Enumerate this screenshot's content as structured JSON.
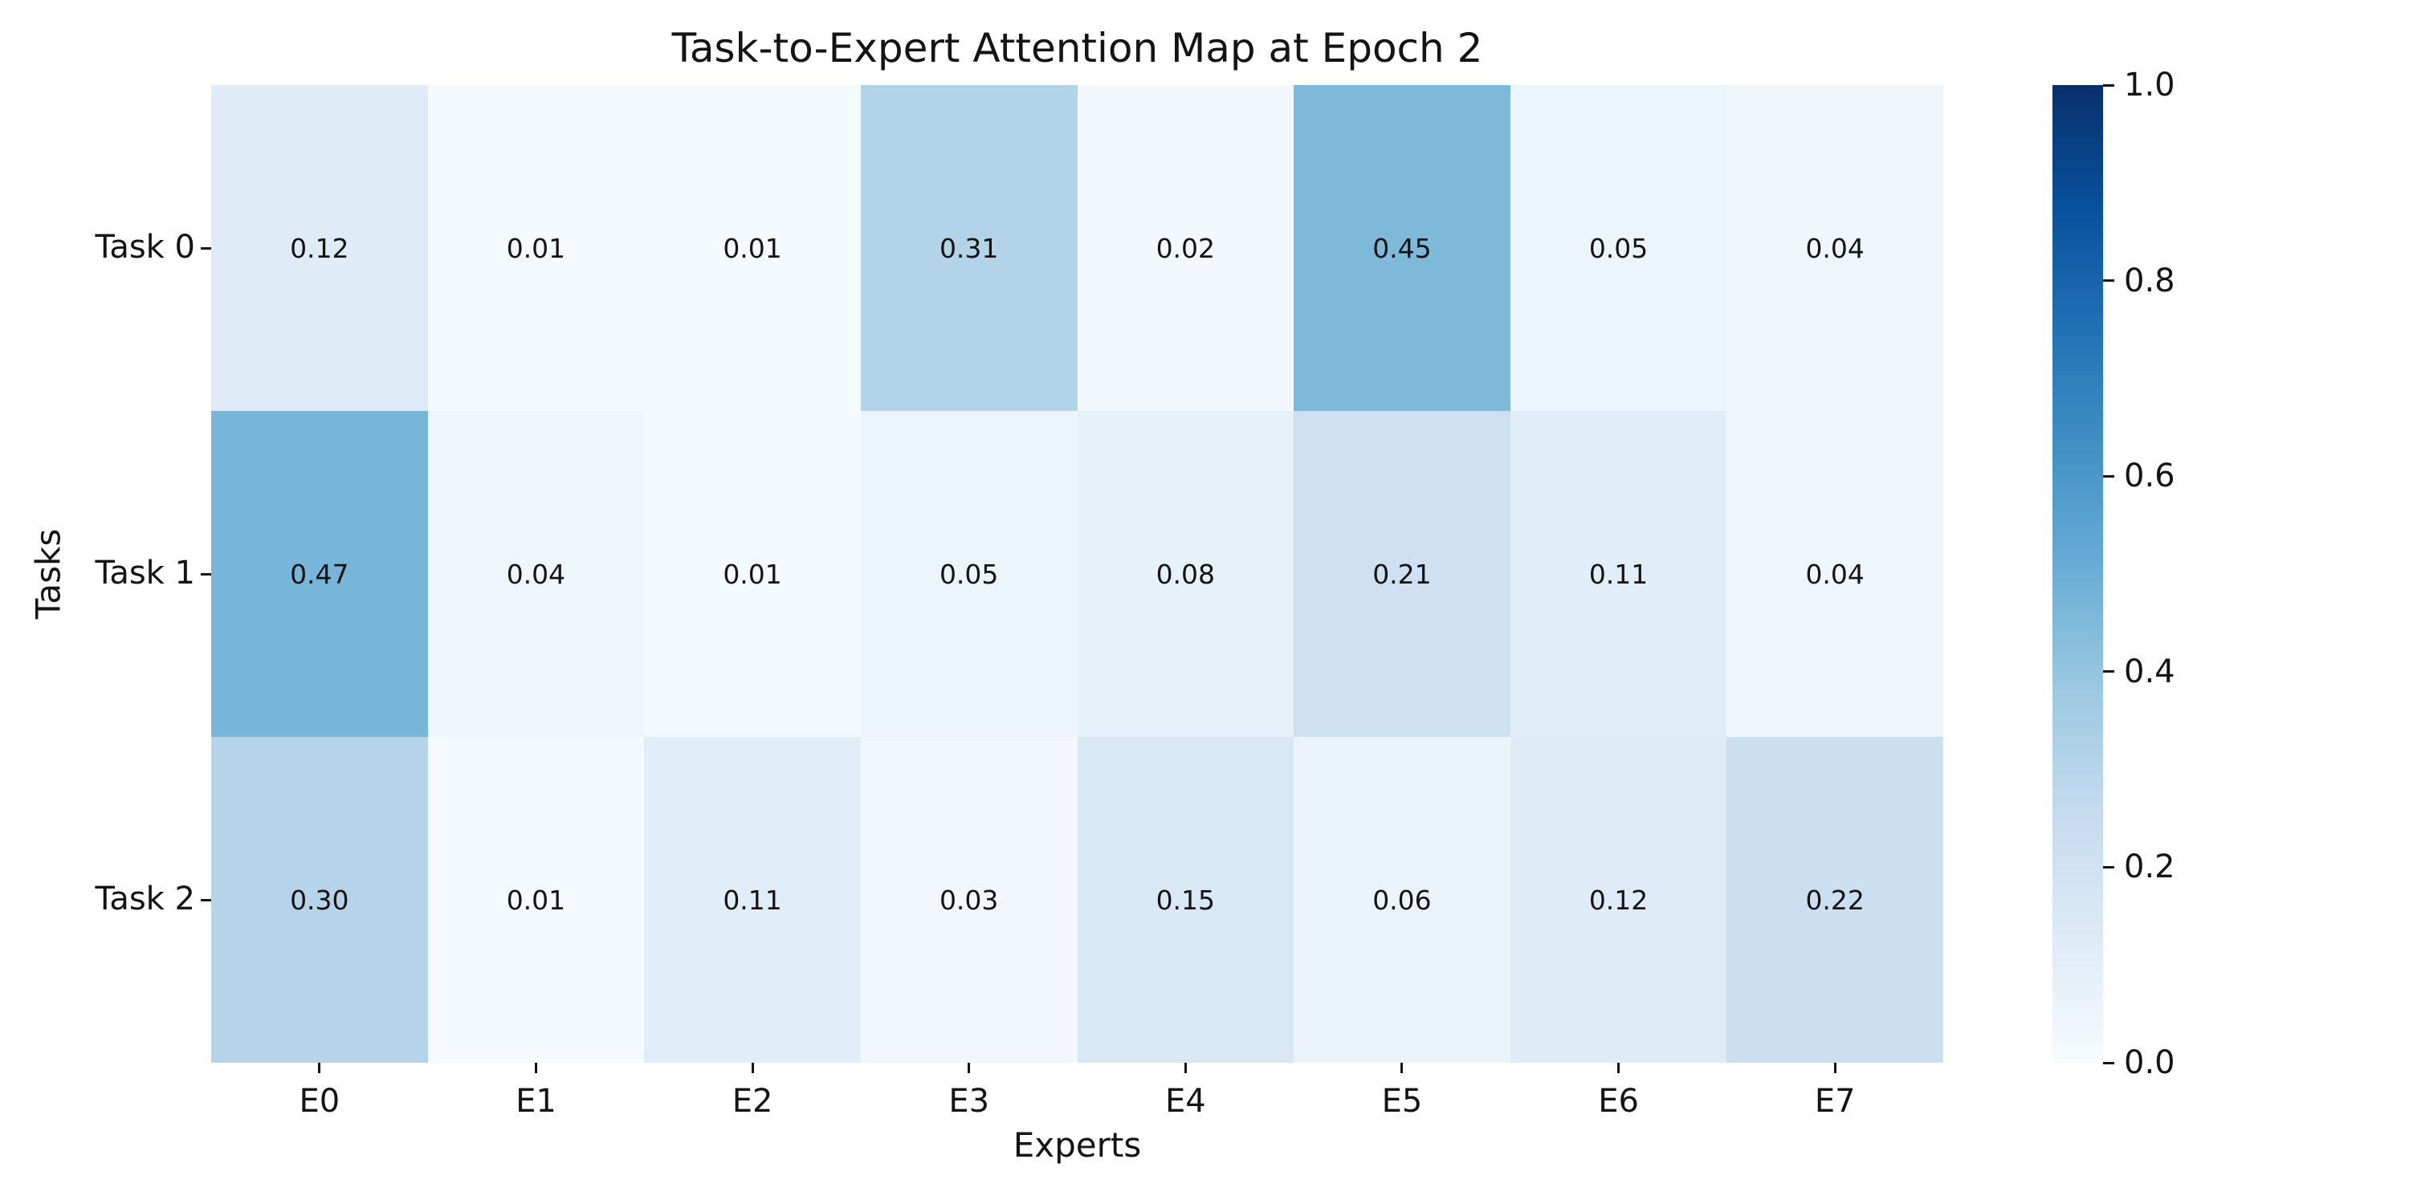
{
  "chart_data": {
    "type": "heatmap",
    "title": "Task-to-Expert Attention Map at Epoch 2",
    "xlabel": "Experts",
    "ylabel": "Tasks",
    "x_ticklabels": [
      "E0",
      "E1",
      "E2",
      "E3",
      "E4",
      "E5",
      "E6",
      "E7"
    ],
    "y_ticklabels": [
      "Task 0",
      "Task 1",
      "Task 2"
    ],
    "series": [
      {
        "name": "Task 0",
        "values": [
          0.12,
          0.01,
          0.01,
          0.31,
          0.02,
          0.45,
          0.05,
          0.04
        ]
      },
      {
        "name": "Task 1",
        "values": [
          0.47,
          0.04,
          0.01,
          0.05,
          0.08,
          0.21,
          0.11,
          0.04
        ]
      },
      {
        "name": "Task 2",
        "values": [
          0.3,
          0.01,
          0.11,
          0.03,
          0.15,
          0.06,
          0.12,
          0.22
        ]
      }
    ],
    "vmin": 0.0,
    "vmax": 1.0,
    "value_decimals": 2,
    "annotated": true,
    "grid": false,
    "colormap": "Blues",
    "colorbar_position": "right",
    "colorbar_ticklabels": [
      "1.0",
      "0.8",
      "0.6",
      "0.4",
      "0.2",
      "0.0"
    ]
  },
  "colors": {
    "background": "#ffffff",
    "text": "#141414",
    "annotation_text_dark": "#141414",
    "annotation_text_light": "#f2f7fd",
    "colormap_stops": [
      "#f7fbff",
      "#deebf7",
      "#c6dbef",
      "#9ecae1",
      "#6baed6",
      "#4292c6",
      "#2171b5",
      "#08519c",
      "#08306b"
    ]
  }
}
